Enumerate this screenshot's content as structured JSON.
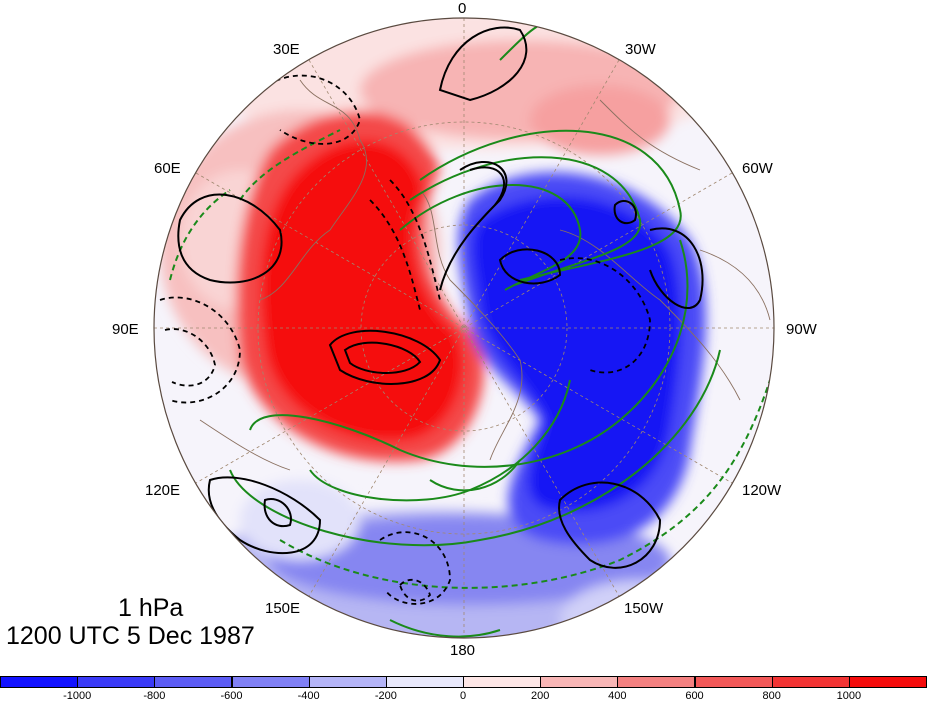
{
  "level_label": "1 hPa",
  "time_label": "1200 UTC 5 Dec 1987",
  "longitude_labels": [
    "0",
    "30W",
    "60W",
    "90W",
    "120W",
    "150W",
    "180",
    "150E",
    "120E",
    "90E",
    "60E",
    "30E"
  ],
  "colorbar": {
    "colors": [
      "#1212ff",
      "#3a3af7",
      "#5c5cf5",
      "#8080f5",
      "#b4b4f7",
      "#e8e8fb",
      "#fde6e6",
      "#f8b6b6",
      "#f38080",
      "#f25858",
      "#f23434",
      "#f50c0c"
    ],
    "tick_labels": [
      "-1000",
      "-800",
      "-600",
      "-400",
      "-200",
      "0",
      "200",
      "400",
      "600",
      "800",
      "1000"
    ]
  },
  "colors": {
    "positive_shading": "#f01010",
    "negative_shading": "#1010f0",
    "contours_primary": "#000000",
    "contours_secondary": "#1a8a1a",
    "coastlines": "#8a7060",
    "graticule": "#a08870"
  }
}
